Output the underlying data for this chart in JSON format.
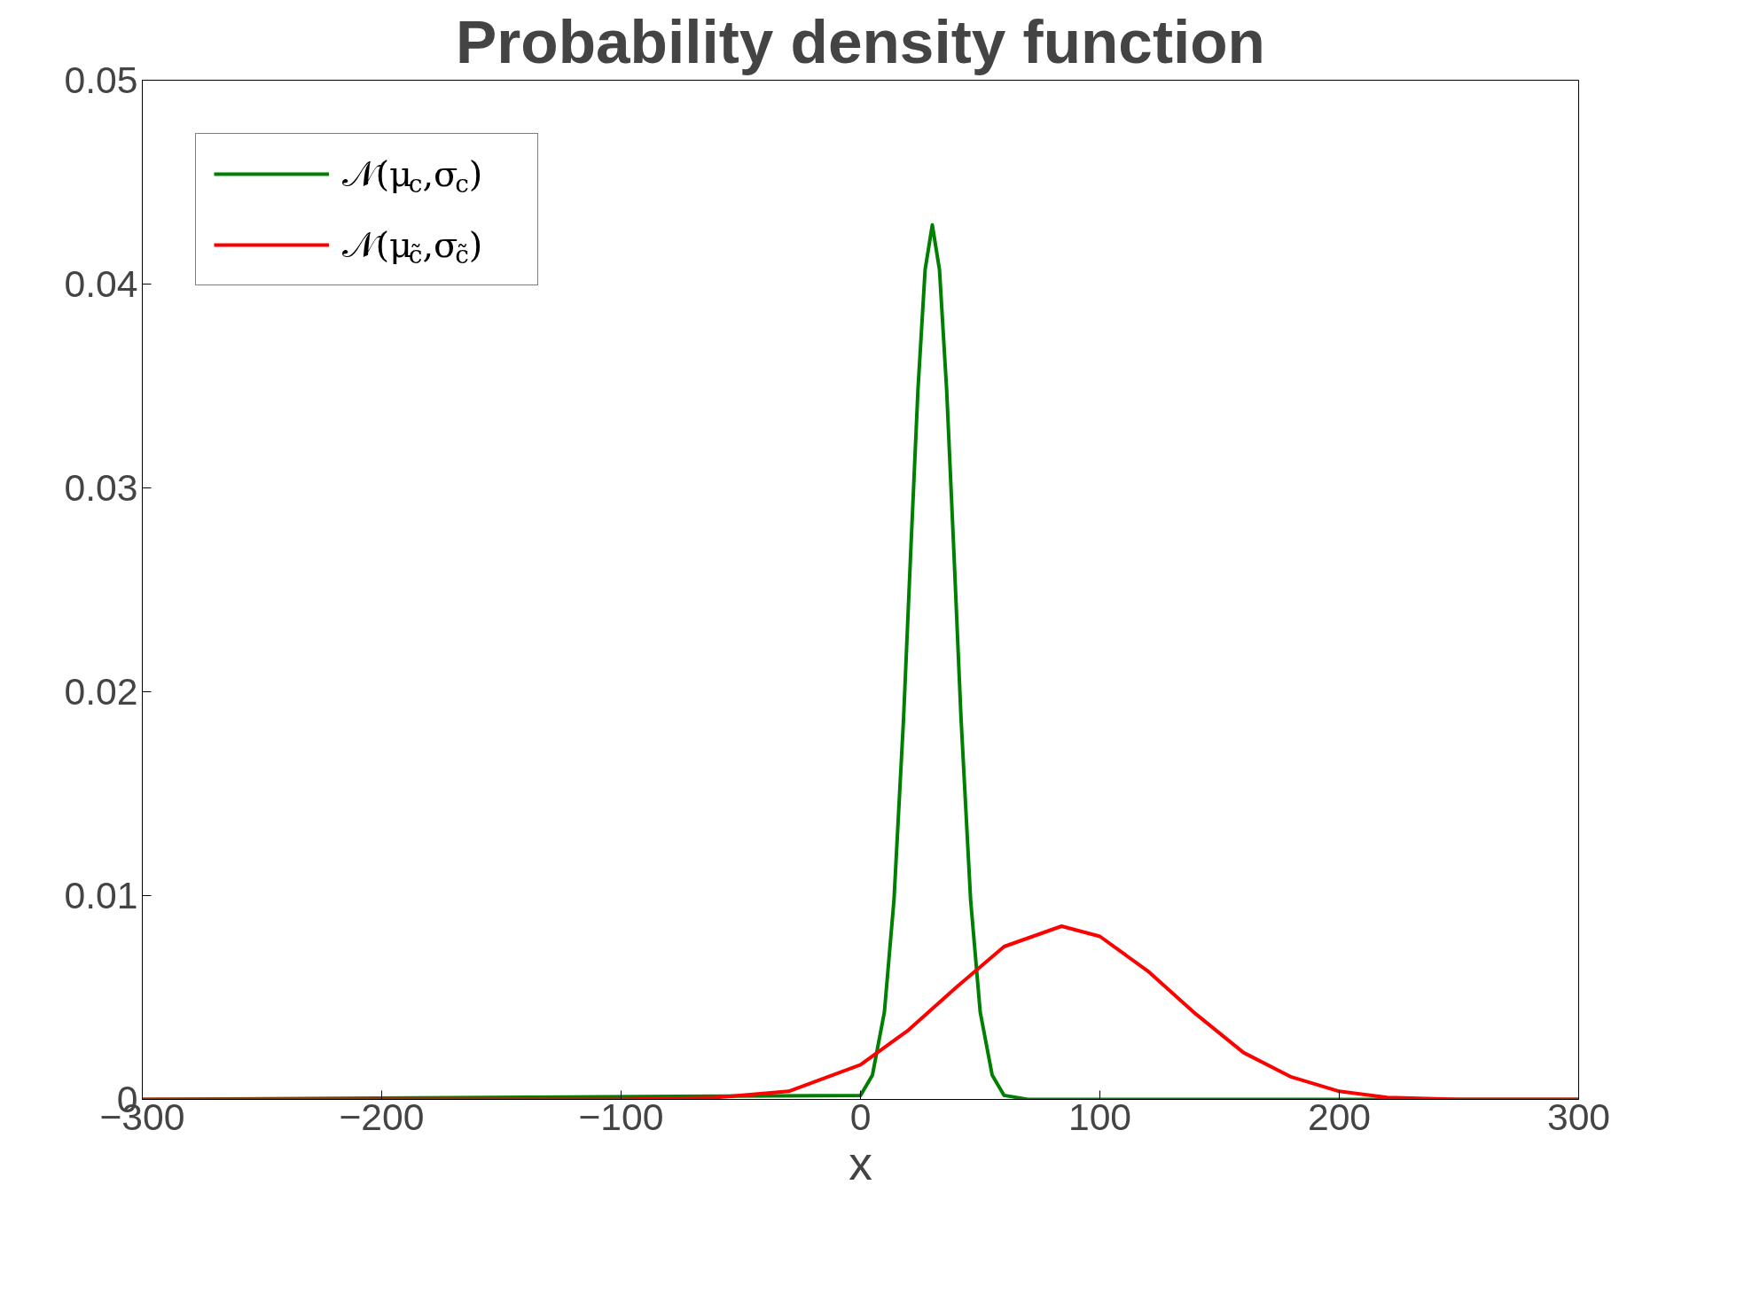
{
  "chart_data": {
    "type": "line",
    "title": "Probability density function",
    "xlabel": "x",
    "xlim": [
      -300,
      300
    ],
    "xticks": [
      -300,
      -200,
      -100,
      0,
      100,
      200,
      300
    ],
    "ylim": [
      0,
      0.05
    ],
    "yticks": [
      0,
      0.01,
      0.02,
      0.03,
      0.04,
      0.05
    ],
    "grid": false,
    "legend": "top left",
    "marker": "none",
    "line_style": "solid",
    "series": [
      {
        "name": "𝒩(μ$_{c}$,σ$_{c}$)",
        "color": "#008000",
        "x": [
          -300,
          0,
          5,
          10,
          14,
          18,
          21,
          24,
          27,
          30,
          33,
          36,
          39,
          42,
          46,
          50,
          55,
          60,
          70,
          300
        ],
        "values": [
          0,
          0.0002,
          0.0012,
          0.0043,
          0.0098,
          0.0187,
          0.0269,
          0.0348,
          0.0407,
          0.0429,
          0.0407,
          0.0348,
          0.0269,
          0.0187,
          0.0098,
          0.0043,
          0.0012,
          0.0002,
          0,
          0
        ]
      },
      {
        "name": "𝒩(μ$_{c̃}$,σ$_{c̃}$)",
        "color": "#ff0000",
        "x": [
          -300,
          -150,
          -100,
          -60,
          -30,
          0,
          20,
          40,
          60,
          84,
          100,
          120,
          140,
          160,
          180,
          200,
          220,
          250,
          300
        ],
        "values": [
          0,
          0,
          0,
          0.0001,
          0.0004,
          0.0017,
          0.0034,
          0.0055,
          0.0075,
          0.0085,
          0.008,
          0.0063,
          0.0042,
          0.0023,
          0.0011,
          0.0004,
          0.0001,
          0,
          0
        ]
      }
    ]
  }
}
